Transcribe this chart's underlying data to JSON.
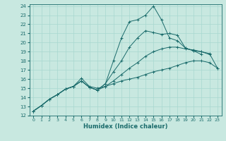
{
  "xlabel": "Humidex (Indice chaleur)",
  "bg_color": "#c8e8e0",
  "line_color": "#1a6b6b",
  "grid_color": "#a8d8d0",
  "xlim": [
    -0.5,
    23.5
  ],
  "ylim": [
    12,
    24.2
  ],
  "xticks": [
    0,
    1,
    2,
    3,
    4,
    5,
    6,
    7,
    8,
    9,
    10,
    11,
    12,
    13,
    14,
    15,
    16,
    17,
    18,
    19,
    20,
    21,
    22,
    23
  ],
  "yticks": [
    12,
    13,
    14,
    15,
    16,
    17,
    18,
    19,
    20,
    21,
    22,
    23,
    24
  ],
  "line1_x": [
    0,
    1,
    2,
    3,
    4,
    5,
    6,
    7,
    8,
    9,
    10,
    11,
    12,
    13,
    14,
    15,
    16,
    17,
    18,
    19,
    20,
    21
  ],
  "line1_y": [
    12.5,
    13.1,
    13.8,
    14.3,
    14.9,
    15.2,
    15.8,
    15.1,
    14.8,
    15.5,
    18.0,
    20.5,
    22.3,
    22.5,
    23.0,
    24.0,
    22.5,
    20.5,
    20.2,
    19.4,
    19.1,
    18.7
  ],
  "line2_x": [
    0,
    1,
    2,
    3,
    4,
    5,
    6,
    7,
    8,
    9,
    10,
    11,
    12,
    13,
    14,
    15,
    16,
    17,
    18,
    19,
    20,
    21,
    22
  ],
  "line2_y": [
    12.5,
    13.1,
    13.8,
    14.3,
    14.9,
    15.2,
    15.8,
    15.1,
    14.8,
    15.5,
    16.8,
    18.0,
    19.5,
    20.5,
    21.3,
    21.1,
    20.9,
    21.0,
    20.8,
    19.4,
    19.1,
    19.0,
    18.7
  ],
  "line3_x": [
    0,
    1,
    2,
    3,
    4,
    5,
    6,
    7,
    8,
    9,
    10,
    11,
    12,
    13,
    14,
    15,
    16,
    17,
    18,
    19,
    20,
    21,
    22,
    23
  ],
  "line3_y": [
    12.5,
    13.1,
    13.8,
    14.3,
    14.9,
    15.2,
    15.8,
    15.1,
    14.8,
    15.2,
    15.8,
    16.5,
    17.2,
    17.8,
    18.5,
    19.0,
    19.3,
    19.5,
    19.5,
    19.3,
    19.2,
    19.0,
    18.8,
    17.2
  ],
  "line4_x": [
    0,
    1,
    2,
    3,
    4,
    5,
    6,
    7,
    8,
    9,
    10,
    11,
    12,
    13,
    14,
    15,
    16,
    17,
    18,
    19,
    20,
    21,
    22,
    23
  ],
  "line4_y": [
    12.5,
    13.1,
    13.8,
    14.3,
    14.9,
    15.2,
    16.1,
    15.2,
    15.0,
    15.2,
    15.5,
    15.8,
    16.0,
    16.2,
    16.5,
    16.8,
    17.0,
    17.2,
    17.5,
    17.8,
    18.0,
    18.0,
    17.8,
    17.2
  ]
}
